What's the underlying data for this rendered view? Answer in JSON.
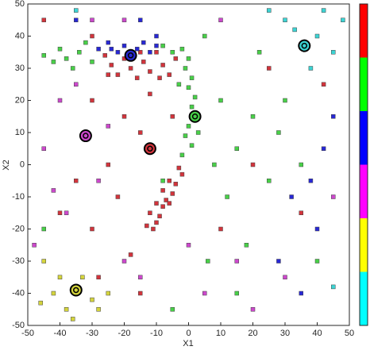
{
  "chart_data": {
    "type": "scatter",
    "xlabel": "X1",
    "ylabel": "X2",
    "xlim": [
      -50,
      50
    ],
    "ylim": [
      -50,
      50
    ],
    "xticks": [
      -50,
      -40,
      -30,
      -20,
      -10,
      0,
      10,
      20,
      30,
      40,
      50
    ],
    "yticks": [
      -50,
      -40,
      -30,
      -20,
      -10,
      0,
      10,
      20,
      30,
      40,
      50
    ],
    "series": [
      {
        "color": "#d2343c",
        "x": [
          -26,
          -24,
          -22,
          -20,
          -18,
          -16,
          -14,
          -12,
          -10,
          -8,
          -6,
          -4,
          -25,
          -15,
          -9,
          -2,
          -4,
          -5,
          -6,
          -7,
          -8,
          -9,
          -10,
          -11,
          -12,
          -6,
          -8,
          -3,
          -10,
          -13,
          -30,
          -20,
          -15,
          -25,
          -35,
          -18,
          -22,
          -30,
          -5,
          -12,
          -40,
          -28,
          -15,
          10,
          20,
          35,
          42,
          -45,
          25,
          -30
        ],
        "y": [
          34,
          31,
          28,
          33,
          30,
          27,
          32,
          29,
          35,
          31,
          28,
          33,
          28,
          35,
          27,
          -3,
          -6,
          -9,
          -5,
          -11,
          -13,
          -16,
          -18,
          -20,
          -15,
          -12,
          -8,
          -1,
          -12,
          -19,
          20,
          15,
          10,
          0,
          -5,
          -28,
          -10,
          -20,
          15,
          22,
          -15,
          -35,
          -40,
          -20,
          0,
          -15,
          25,
          45,
          30,
          40
        ]
      },
      {
        "color": "#48d048",
        "x": [
          -45,
          -42,
          -40,
          -38,
          -36,
          -34,
          -32,
          -30,
          -8,
          -5,
          -2,
          0,
          -1,
          1,
          0,
          2,
          1,
          3,
          0,
          -1,
          1,
          -2,
          3,
          -3,
          10,
          15,
          20,
          25,
          12,
          18,
          8,
          30,
          22,
          5,
          15,
          28,
          35,
          -45,
          40,
          6,
          -5,
          -8
        ],
        "y": [
          34,
          32,
          36,
          33,
          30,
          35,
          38,
          32,
          37,
          35,
          36,
          33,
          30,
          27,
          24,
          21,
          18,
          15,
          12,
          9,
          6,
          3,
          10,
          25,
          20,
          5,
          15,
          -5,
          -10,
          -25,
          0,
          20,
          35,
          40,
          -40,
          10,
          0,
          -20,
          -30,
          -30,
          -45,
          -5
        ]
      },
      {
        "color": "#2828d4",
        "x": [
          -28,
          -25,
          -22,
          -20,
          -18,
          -16,
          -14,
          -12,
          -10,
          -24,
          -35,
          -15,
          38,
          45,
          32,
          40,
          35,
          28,
          -10,
          42
        ],
        "y": [
          36,
          38,
          35,
          37,
          34,
          36,
          38,
          35,
          37,
          36,
          45,
          45,
          -5,
          15,
          -10,
          -20,
          -40,
          -30,
          40,
          5
        ]
      },
      {
        "color": "#cc48cc",
        "x": [
          -32,
          -40,
          -45,
          -38,
          -25,
          -28,
          -42,
          -35,
          -20,
          -15,
          5,
          20,
          30,
          -48,
          -30,
          10,
          45,
          -20,
          0,
          15
        ],
        "y": [
          9,
          20,
          5,
          -15,
          12,
          -5,
          -8,
          25,
          -30,
          -35,
          -40,
          -45,
          -35,
          -25,
          45,
          45,
          -10,
          45,
          -25,
          -30
        ]
      },
      {
        "color": "#d4d43c",
        "x": [
          -35,
          -40,
          -45,
          -38,
          -30,
          -42,
          -33,
          -28,
          -36,
          -46,
          -25
        ],
        "y": [
          -39,
          -35,
          -30,
          -45,
          -42,
          -40,
          -35,
          -45,
          -48,
          -43,
          -40
        ]
      },
      {
        "color": "#3cd4d4",
        "x": [
          36,
          40,
          45,
          30,
          42,
          38,
          45,
          33,
          48,
          25,
          -35
        ],
        "y": [
          37,
          40,
          35,
          45,
          48,
          30,
          -38,
          42,
          45,
          48,
          48
        ]
      }
    ],
    "centers": {
      "x": [
        -12,
        2,
        -18,
        -32,
        -35,
        36
      ],
      "y": [
        5,
        15,
        34,
        9,
        -39,
        37
      ],
      "colors": [
        "#d2343c",
        "#48d048",
        "#2828d4",
        "#cc48cc",
        "#d4d43c",
        "#3cd4d4"
      ]
    },
    "colorbar": [
      "#ff0000",
      "#00ff00",
      "#0000ff",
      "#ff00ff",
      "#ffff00",
      "#00ffff"
    ]
  }
}
